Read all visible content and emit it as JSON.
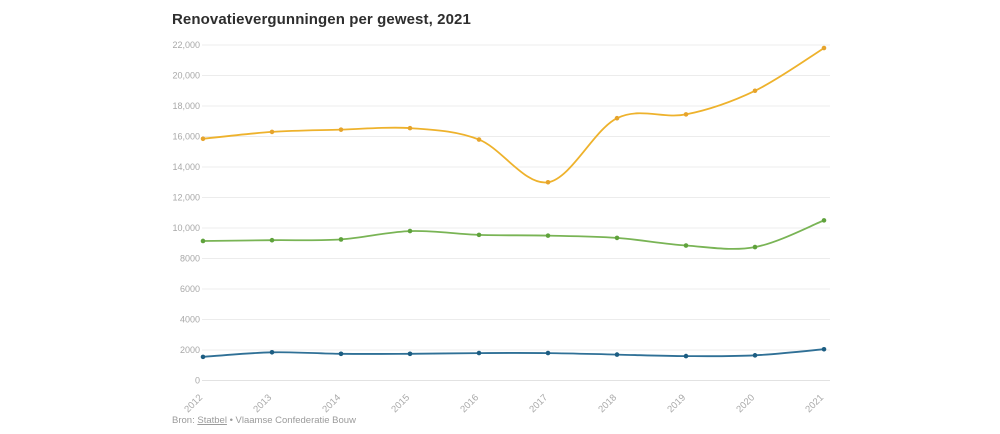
{
  "page": {
    "title": "Renovatievergunningen per gewest, 2021",
    "source": {
      "prefix": "Bron: ",
      "link_label": "Statbel",
      "separator": " • ",
      "suffix": "Vlaamse Confederatie Bouw"
    }
  },
  "colors": {
    "background": "#ffffff",
    "title_text": "#2e2e2e",
    "axis_label_text": "#a8a8a8",
    "gridline": "#ececec",
    "baseline": "#e2e2e2",
    "footer_text": "#9b9b9b"
  },
  "chart_data": {
    "type": "line",
    "title": "Renovatievergunningen per gewest, 2021",
    "x": [
      2012,
      2013,
      2014,
      2015,
      2016,
      2017,
      2018,
      2019,
      2020,
      2021
    ],
    "series": [
      {
        "name": "yellow",
        "color": "#eeb22c",
        "marker_color": "#e6a42c",
        "values": [
          15850,
          16300,
          16450,
          16550,
          15800,
          13000,
          17200,
          17450,
          19000,
          21800
        ]
      },
      {
        "name": "green",
        "color": "#79b455",
        "marker_color": "#5fa23c",
        "values": [
          9150,
          9200,
          9250,
          9800,
          9550,
          9500,
          9350,
          8850,
          8750,
          10500
        ]
      },
      {
        "name": "blue",
        "color": "#2f7096",
        "marker_color": "#1c5d82",
        "values": [
          1550,
          1850,
          1750,
          1750,
          1800,
          1800,
          1700,
          1600,
          1650,
          2050
        ]
      }
    ],
    "ylim": [
      0,
      22000
    ],
    "ytick_step": 2000,
    "ytick_labels": [
      "0",
      "2000",
      "4000",
      "6000",
      "8000",
      "10,000",
      "12,000",
      "14,000",
      "16,000",
      "18,000",
      "20,000",
      "22,000"
    ],
    "xtick_labels": [
      "2012",
      "2013",
      "2014",
      "2015",
      "2016",
      "2017",
      "2018",
      "2019",
      "2020",
      "2021"
    ],
    "grid": true,
    "legend": "none",
    "smooth_lines": true
  }
}
